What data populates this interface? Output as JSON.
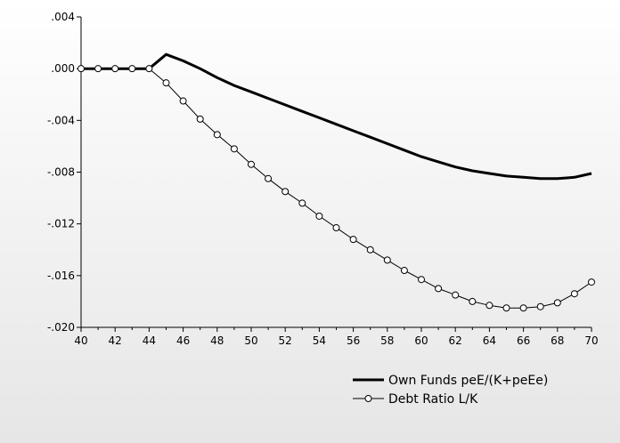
{
  "chart_data": {
    "type": "line",
    "title": "",
    "xlabel": "",
    "ylabel": "",
    "xlim": [
      40,
      70
    ],
    "ylim": [
      -0.02,
      0.004
    ],
    "x_ticks": [
      40,
      42,
      44,
      46,
      48,
      50,
      52,
      54,
      56,
      58,
      60,
      62,
      64,
      66,
      68,
      70
    ],
    "x_tick_labels": [
      "40",
      "42",
      "44",
      "46",
      "48",
      "50",
      "52",
      "54",
      "56",
      "58",
      "60",
      "62",
      "64",
      "66",
      "68",
      "70"
    ],
    "y_ticks": [
      0.004,
      0.0,
      -0.004,
      -0.008,
      -0.012,
      -0.016,
      -0.02
    ],
    "y_tick_labels": [
      ".004",
      ".000",
      "-.004",
      "-.008",
      "-.012",
      "-.016",
      "-.020"
    ],
    "grid": false,
    "legend": "bottom-right",
    "x": [
      40,
      41,
      42,
      43,
      44,
      45,
      46,
      47,
      48,
      49,
      50,
      51,
      52,
      53,
      54,
      55,
      56,
      57,
      58,
      59,
      60,
      61,
      62,
      63,
      64,
      65,
      66,
      67,
      68,
      69,
      70
    ],
    "series": [
      {
        "name": "Own Funds peE/(K+peEe)",
        "color": "#000000",
        "marker": "none",
        "values": [
          0.0,
          0.0,
          0.0,
          0.0,
          0.0,
          0.0011,
          0.0006,
          0.0,
          -0.0007,
          -0.0013,
          -0.0018,
          -0.0023,
          -0.0028,
          -0.0033,
          -0.0038,
          -0.0043,
          -0.0048,
          -0.0053,
          -0.0058,
          -0.0063,
          -0.0068,
          -0.0072,
          -0.0076,
          -0.0079,
          -0.0081,
          -0.0083,
          -0.0084,
          -0.0085,
          -0.0085,
          -0.0084,
          -0.0081
        ]
      },
      {
        "name": "Debt Ratio L/K",
        "color": "#000000",
        "marker": "circle-open",
        "values": [
          0.0,
          0.0,
          0.0,
          0.0,
          0.0,
          -0.0011,
          -0.0025,
          -0.0039,
          -0.0051,
          -0.0062,
          -0.0074,
          -0.0085,
          -0.0095,
          -0.0104,
          -0.0114,
          -0.0123,
          -0.0132,
          -0.014,
          -0.0148,
          -0.0156,
          -0.0163,
          -0.017,
          -0.0175,
          -0.018,
          -0.0183,
          -0.0185,
          -0.0185,
          -0.0184,
          -0.0181,
          -0.0174,
          -0.0165
        ]
      }
    ]
  }
}
